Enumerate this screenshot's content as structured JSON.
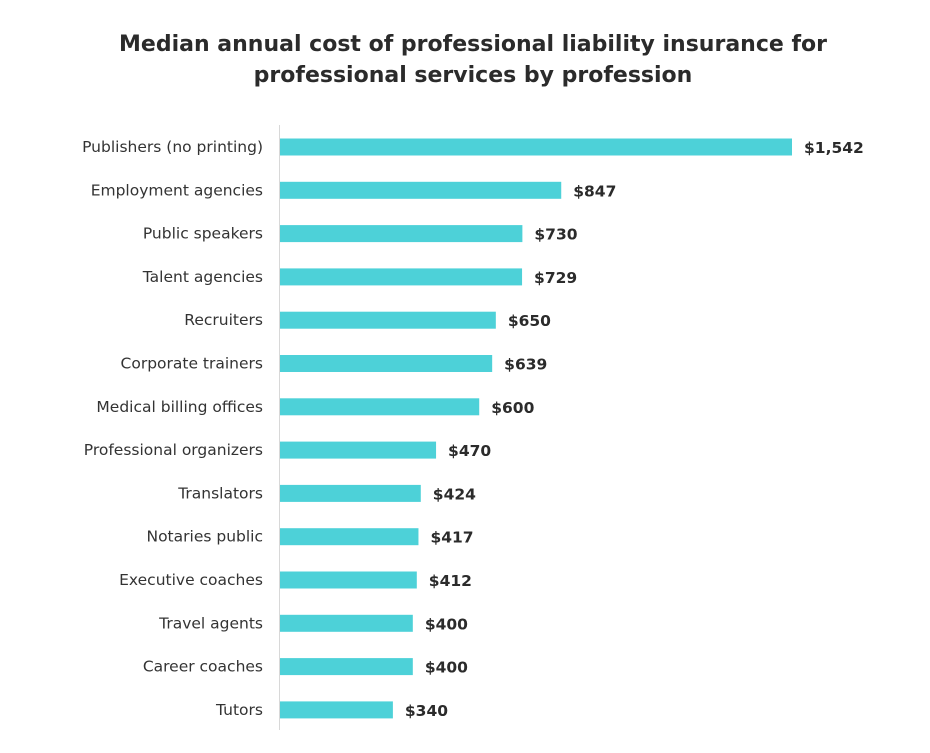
{
  "chart_data": {
    "type": "bar",
    "orientation": "horizontal",
    "title_lines": [
      "Median annual cost of professional liability insurance for",
      "professional services by profession"
    ],
    "categories": [
      "Publishers (no printing)",
      "Employment agencies",
      "Public speakers",
      "Talent agencies",
      "Recruiters",
      "Corporate trainers",
      "Medical billing offices",
      "Professional organizers",
      "Translators",
      "Notaries public",
      "Executive coaches",
      "Travel agents",
      "Career coaches",
      "Tutors"
    ],
    "values": [
      1542,
      847,
      730,
      729,
      650,
      639,
      600,
      470,
      424,
      417,
      412,
      400,
      400,
      340
    ],
    "value_labels": [
      "$1,542",
      "$847",
      "$730",
      "$729",
      "$650",
      "$639",
      "$600",
      "$470",
      "$424",
      "$417",
      "$412",
      "$400",
      "$400",
      "$340"
    ],
    "xlim": [
      0,
      1542
    ],
    "xlabel": "",
    "ylabel": "",
    "grid": false,
    "legend": "none",
    "bar_color": "#4dd1d8",
    "axis_color": "#d8d8d8"
  }
}
